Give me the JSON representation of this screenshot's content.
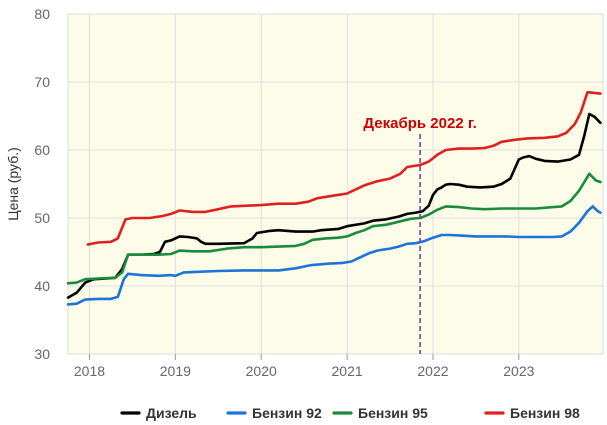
{
  "chart_data": {
    "type": "line",
    "title": "",
    "xlabel": "",
    "ylabel": "Цена (руб.)",
    "ylim": [
      30,
      80
    ],
    "yticks": [
      30,
      40,
      50,
      60,
      70,
      80
    ],
    "xlim": [
      2017.75,
      2023.98
    ],
    "xticks": [
      {
        "v": 2018,
        "label": "2018"
      },
      {
        "v": 2019,
        "label": "2019"
      },
      {
        "v": 2020,
        "label": "2020"
      },
      {
        "v": 2021,
        "label": "2021"
      },
      {
        "v": 2022,
        "label": "2022"
      },
      {
        "v": 2023,
        "label": "2023"
      }
    ],
    "grid": true,
    "legend_position": "bottom",
    "annotation": {
      "text": "Декабрь 2022 г.",
      "x": 2021.85,
      "color": "#cc0000",
      "line_color": "#7a3ea0"
    },
    "series": [
      {
        "name": "Дизель",
        "color": "#000000",
        "points": [
          [
            2017.75,
            38.3
          ],
          [
            2017.85,
            39.0
          ],
          [
            2017.95,
            40.5
          ],
          [
            2018.05,
            41.0
          ],
          [
            2018.2,
            41.1
          ],
          [
            2018.3,
            41.2
          ],
          [
            2018.38,
            42.5
          ],
          [
            2018.45,
            44.6
          ],
          [
            2018.6,
            44.6
          ],
          [
            2018.75,
            44.7
          ],
          [
            2018.82,
            45.0
          ],
          [
            2018.88,
            46.5
          ],
          [
            2018.95,
            46.7
          ],
          [
            2019.05,
            47.3
          ],
          [
            2019.15,
            47.2
          ],
          [
            2019.25,
            47.0
          ],
          [
            2019.3,
            46.5
          ],
          [
            2019.35,
            46.2
          ],
          [
            2019.5,
            46.2
          ],
          [
            2019.8,
            46.3
          ],
          [
            2019.9,
            47.0
          ],
          [
            2019.95,
            47.8
          ],
          [
            2020.1,
            48.1
          ],
          [
            2020.2,
            48.2
          ],
          [
            2020.4,
            48.0
          ],
          [
            2020.6,
            48.0
          ],
          [
            2020.7,
            48.2
          ],
          [
            2020.9,
            48.4
          ],
          [
            2021.0,
            48.8
          ],
          [
            2021.2,
            49.2
          ],
          [
            2021.3,
            49.6
          ],
          [
            2021.45,
            49.8
          ],
          [
            2021.6,
            50.2
          ],
          [
            2021.7,
            50.6
          ],
          [
            2021.8,
            50.8
          ],
          [
            2021.88,
            51.0
          ],
          [
            2021.95,
            51.8
          ],
          [
            2022.0,
            53.4
          ],
          [
            2022.05,
            54.2
          ],
          [
            2022.1,
            54.5
          ],
          [
            2022.15,
            54.9
          ],
          [
            2022.2,
            55.0
          ],
          [
            2022.3,
            54.9
          ],
          [
            2022.4,
            54.6
          ],
          [
            2022.55,
            54.5
          ],
          [
            2022.7,
            54.6
          ],
          [
            2022.8,
            55.0
          ],
          [
            2022.9,
            55.8
          ],
          [
            2023.0,
            58.6
          ],
          [
            2023.05,
            58.9
          ],
          [
            2023.12,
            59.1
          ],
          [
            2023.2,
            58.7
          ],
          [
            2023.3,
            58.4
          ],
          [
            2023.45,
            58.3
          ],
          [
            2023.6,
            58.6
          ],
          [
            2023.7,
            59.3
          ],
          [
            2023.76,
            62.0
          ],
          [
            2023.82,
            65.3
          ],
          [
            2023.88,
            64.9
          ],
          [
            2023.95,
            64.0
          ]
        ]
      },
      {
        "name": "Бензин 92",
        "color": "#1e73d6",
        "points": [
          [
            2017.75,
            37.3
          ],
          [
            2017.85,
            37.4
          ],
          [
            2017.95,
            38.0
          ],
          [
            2018.1,
            38.1
          ],
          [
            2018.25,
            38.1
          ],
          [
            2018.33,
            38.4
          ],
          [
            2018.4,
            41.0
          ],
          [
            2018.45,
            41.8
          ],
          [
            2018.6,
            41.6
          ],
          [
            2018.8,
            41.5
          ],
          [
            2018.95,
            41.6
          ],
          [
            2019.0,
            41.5
          ],
          [
            2019.1,
            42.0
          ],
          [
            2019.3,
            42.1
          ],
          [
            2019.5,
            42.2
          ],
          [
            2019.8,
            42.3
          ],
          [
            2020.0,
            42.3
          ],
          [
            2020.2,
            42.3
          ],
          [
            2020.4,
            42.6
          ],
          [
            2020.55,
            43.0
          ],
          [
            2020.6,
            43.1
          ],
          [
            2020.8,
            43.3
          ],
          [
            2020.95,
            43.4
          ],
          [
            2021.05,
            43.6
          ],
          [
            2021.15,
            44.2
          ],
          [
            2021.25,
            44.8
          ],
          [
            2021.35,
            45.2
          ],
          [
            2021.5,
            45.5
          ],
          [
            2021.6,
            45.8
          ],
          [
            2021.7,
            46.2
          ],
          [
            2021.8,
            46.3
          ],
          [
            2021.9,
            46.6
          ],
          [
            2022.0,
            47.1
          ],
          [
            2022.1,
            47.5
          ],
          [
            2022.2,
            47.5
          ],
          [
            2022.35,
            47.4
          ],
          [
            2022.5,
            47.3
          ],
          [
            2022.7,
            47.3
          ],
          [
            2022.85,
            47.3
          ],
          [
            2023.0,
            47.2
          ],
          [
            2023.2,
            47.2
          ],
          [
            2023.4,
            47.2
          ],
          [
            2023.5,
            47.3
          ],
          [
            2023.6,
            48.0
          ],
          [
            2023.7,
            49.3
          ],
          [
            2023.8,
            51.0
          ],
          [
            2023.86,
            51.7
          ],
          [
            2023.92,
            51.0
          ],
          [
            2023.95,
            50.8
          ]
        ]
      },
      {
        "name": "Бензин 95",
        "color": "#1a8a3c",
        "points": [
          [
            2017.75,
            40.4
          ],
          [
            2017.85,
            40.5
          ],
          [
            2017.95,
            41.0
          ],
          [
            2018.1,
            41.1
          ],
          [
            2018.3,
            41.2
          ],
          [
            2018.38,
            42.0
          ],
          [
            2018.45,
            44.6
          ],
          [
            2018.6,
            44.6
          ],
          [
            2018.8,
            44.6
          ],
          [
            2018.95,
            44.7
          ],
          [
            2019.05,
            45.2
          ],
          [
            2019.2,
            45.1
          ],
          [
            2019.4,
            45.1
          ],
          [
            2019.6,
            45.5
          ],
          [
            2019.8,
            45.7
          ],
          [
            2020.0,
            45.7
          ],
          [
            2020.2,
            45.8
          ],
          [
            2020.4,
            45.9
          ],
          [
            2020.5,
            46.2
          ],
          [
            2020.6,
            46.8
          ],
          [
            2020.75,
            47.0
          ],
          [
            2020.9,
            47.1
          ],
          [
            2021.0,
            47.3
          ],
          [
            2021.1,
            47.8
          ],
          [
            2021.2,
            48.2
          ],
          [
            2021.3,
            48.8
          ],
          [
            2021.45,
            49.0
          ],
          [
            2021.55,
            49.3
          ],
          [
            2021.65,
            49.6
          ],
          [
            2021.75,
            49.9
          ],
          [
            2021.85,
            50.0
          ],
          [
            2021.95,
            50.5
          ],
          [
            2022.05,
            51.2
          ],
          [
            2022.15,
            51.7
          ],
          [
            2022.3,
            51.6
          ],
          [
            2022.45,
            51.4
          ],
          [
            2022.6,
            51.3
          ],
          [
            2022.8,
            51.4
          ],
          [
            2023.0,
            51.4
          ],
          [
            2023.2,
            51.4
          ],
          [
            2023.4,
            51.6
          ],
          [
            2023.5,
            51.7
          ],
          [
            2023.6,
            52.5
          ],
          [
            2023.7,
            54.0
          ],
          [
            2023.82,
            56.5
          ],
          [
            2023.9,
            55.5
          ],
          [
            2023.95,
            55.3
          ]
        ]
      },
      {
        "name": "Бензин 98",
        "color": "#e0201e",
        "points": [
          [
            2017.98,
            46.1
          ],
          [
            2018.1,
            46.4
          ],
          [
            2018.25,
            46.5
          ],
          [
            2018.33,
            47.0
          ],
          [
            2018.42,
            49.8
          ],
          [
            2018.5,
            50.0
          ],
          [
            2018.7,
            50.0
          ],
          [
            2018.85,
            50.3
          ],
          [
            2018.95,
            50.6
          ],
          [
            2019.05,
            51.1
          ],
          [
            2019.2,
            50.9
          ],
          [
            2019.35,
            50.9
          ],
          [
            2019.5,
            51.3
          ],
          [
            2019.65,
            51.7
          ],
          [
            2019.8,
            51.8
          ],
          [
            2020.0,
            51.9
          ],
          [
            2020.2,
            52.1
          ],
          [
            2020.4,
            52.1
          ],
          [
            2020.55,
            52.4
          ],
          [
            2020.65,
            52.9
          ],
          [
            2020.8,
            53.2
          ],
          [
            2021.0,
            53.6
          ],
          [
            2021.1,
            54.2
          ],
          [
            2021.2,
            54.8
          ],
          [
            2021.35,
            55.4
          ],
          [
            2021.5,
            55.8
          ],
          [
            2021.62,
            56.5
          ],
          [
            2021.7,
            57.5
          ],
          [
            2021.85,
            57.8
          ],
          [
            2021.95,
            58.3
          ],
          [
            2022.05,
            59.3
          ],
          [
            2022.15,
            60.0
          ],
          [
            2022.3,
            60.2
          ],
          [
            2022.45,
            60.2
          ],
          [
            2022.6,
            60.3
          ],
          [
            2022.7,
            60.6
          ],
          [
            2022.8,
            61.2
          ],
          [
            2022.95,
            61.5
          ],
          [
            2023.1,
            61.7
          ],
          [
            2023.3,
            61.8
          ],
          [
            2023.45,
            62.0
          ],
          [
            2023.55,
            62.5
          ],
          [
            2023.65,
            63.8
          ],
          [
            2023.72,
            65.5
          ],
          [
            2023.8,
            68.5
          ],
          [
            2023.88,
            68.4
          ],
          [
            2023.95,
            68.3
          ]
        ]
      }
    ]
  }
}
